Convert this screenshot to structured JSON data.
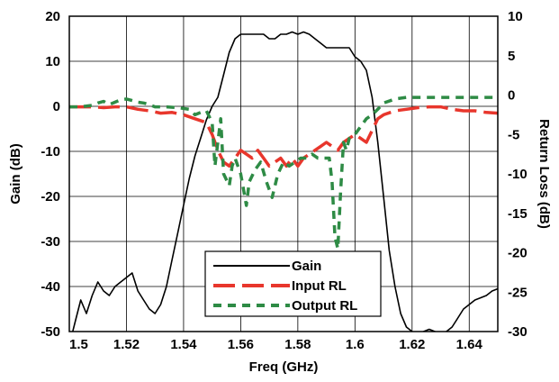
{
  "chart_data": {
    "type": "line",
    "xlabel": "Freq (GHz)",
    "ylabel": "Gain (dB)",
    "y2label": "Return Loss (dB)",
    "xlim": [
      1.5,
      1.65
    ],
    "ylim": [
      -50,
      20
    ],
    "y2lim": [
      -30,
      10
    ],
    "xticks": [
      "1.5",
      "1.52",
      "1.54",
      "1.56",
      "1.58",
      "1.6",
      "1.62",
      "1.64"
    ],
    "yticks": [
      "20",
      "10",
      "0",
      "-10",
      "-20",
      "-30",
      "-40",
      "-50"
    ],
    "y2ticks": [
      "10",
      "5",
      "0",
      "-5",
      "-10",
      "-15",
      "-20",
      "-25",
      "-30"
    ],
    "grid": true,
    "legend_position": "bottom-center",
    "series": [
      {
        "name": "Gain",
        "axis": "left",
        "color": "#000000",
        "style": "solid",
        "points": [
          [
            1.5,
            -53
          ],
          [
            1.502,
            -48
          ],
          [
            1.504,
            -43
          ],
          [
            1.506,
            -46
          ],
          [
            1.508,
            -42
          ],
          [
            1.51,
            -39
          ],
          [
            1.512,
            -41
          ],
          [
            1.514,
            -42
          ],
          [
            1.516,
            -40
          ],
          [
            1.518,
            -39
          ],
          [
            1.52,
            -38
          ],
          [
            1.522,
            -37
          ],
          [
            1.524,
            -41
          ],
          [
            1.526,
            -43
          ],
          [
            1.528,
            -45
          ],
          [
            1.53,
            -46
          ],
          [
            1.532,
            -44
          ],
          [
            1.534,
            -40
          ],
          [
            1.536,
            -34
          ],
          [
            1.538,
            -28
          ],
          [
            1.54,
            -22
          ],
          [
            1.542,
            -16
          ],
          [
            1.544,
            -11
          ],
          [
            1.546,
            -7
          ],
          [
            1.548,
            -3
          ],
          [
            1.55,
            0
          ],
          [
            1.552,
            2
          ],
          [
            1.554,
            7
          ],
          [
            1.556,
            12
          ],
          [
            1.558,
            15
          ],
          [
            1.56,
            16
          ],
          [
            1.562,
            16
          ],
          [
            1.564,
            16
          ],
          [
            1.566,
            16
          ],
          [
            1.568,
            16
          ],
          [
            1.57,
            15
          ],
          [
            1.572,
            15
          ],
          [
            1.574,
            16
          ],
          [
            1.576,
            16
          ],
          [
            1.578,
            16.5
          ],
          [
            1.58,
            16
          ],
          [
            1.582,
            16.5
          ],
          [
            1.584,
            16
          ],
          [
            1.586,
            15
          ],
          [
            1.588,
            14
          ],
          [
            1.59,
            13
          ],
          [
            1.592,
            13
          ],
          [
            1.594,
            13
          ],
          [
            1.596,
            13
          ],
          [
            1.598,
            13
          ],
          [
            1.6,
            11
          ],
          [
            1.602,
            10
          ],
          [
            1.604,
            8
          ],
          [
            1.606,
            2
          ],
          [
            1.608,
            -8
          ],
          [
            1.61,
            -20
          ],
          [
            1.612,
            -32
          ],
          [
            1.614,
            -40
          ],
          [
            1.616,
            -46
          ],
          [
            1.618,
            -49
          ],
          [
            1.62,
            -50
          ],
          [
            1.622,
            -50.5
          ],
          [
            1.624,
            -50
          ],
          [
            1.626,
            -49.5
          ],
          [
            1.628,
            -50
          ],
          [
            1.63,
            -50.5
          ],
          [
            1.632,
            -50
          ],
          [
            1.634,
            -49
          ],
          [
            1.636,
            -47
          ],
          [
            1.638,
            -45
          ],
          [
            1.64,
            -44
          ],
          [
            1.642,
            -43
          ],
          [
            1.644,
            -42.5
          ],
          [
            1.646,
            -42
          ],
          [
            1.648,
            -41
          ],
          [
            1.65,
            -40.5
          ]
        ]
      },
      {
        "name": "Input RL",
        "axis": "right",
        "color": "#e8362c",
        "style": "long-dash",
        "points": [
          [
            1.5,
            -1.5
          ],
          [
            1.504,
            -1.5
          ],
          [
            1.508,
            -1.5
          ],
          [
            1.512,
            -1.6
          ],
          [
            1.516,
            -1.5
          ],
          [
            1.52,
            -1.5
          ],
          [
            1.524,
            -1.8
          ],
          [
            1.528,
            -2
          ],
          [
            1.532,
            -2.3
          ],
          [
            1.536,
            -2.2
          ],
          [
            1.54,
            -2.5
          ],
          [
            1.544,
            -3
          ],
          [
            1.548,
            -3.5
          ],
          [
            1.55,
            -5
          ],
          [
            1.552,
            -7
          ],
          [
            1.554,
            -8.5
          ],
          [
            1.556,
            -9
          ],
          [
            1.558,
            -8
          ],
          [
            1.56,
            -7
          ],
          [
            1.562,
            -7.5
          ],
          [
            1.564,
            -8
          ],
          [
            1.566,
            -7
          ],
          [
            1.568,
            -8
          ],
          [
            1.57,
            -9
          ],
          [
            1.572,
            -8.5
          ],
          [
            1.574,
            -8
          ],
          [
            1.576,
            -9
          ],
          [
            1.578,
            -8
          ],
          [
            1.58,
            -9
          ],
          [
            1.582,
            -8
          ],
          [
            1.584,
            -7.5
          ],
          [
            1.586,
            -7
          ],
          [
            1.588,
            -6.5
          ],
          [
            1.59,
            -6
          ],
          [
            1.592,
            -6.5
          ],
          [
            1.594,
            -7
          ],
          [
            1.596,
            -6
          ],
          [
            1.598,
            -5.5
          ],
          [
            1.6,
            -5
          ],
          [
            1.602,
            -5.5
          ],
          [
            1.604,
            -6
          ],
          [
            1.606,
            -4.5
          ],
          [
            1.608,
            -3
          ],
          [
            1.61,
            -2.5
          ],
          [
            1.614,
            -2
          ],
          [
            1.618,
            -1.8
          ],
          [
            1.622,
            -1.6
          ],
          [
            1.626,
            -1.5
          ],
          [
            1.63,
            -1.5
          ],
          [
            1.634,
            -1.8
          ],
          [
            1.638,
            -2
          ],
          [
            1.642,
            -2
          ],
          [
            1.646,
            -2.2
          ],
          [
            1.65,
            -2.3
          ]
        ]
      },
      {
        "name": "Output RL",
        "axis": "right",
        "color": "#2e8b45",
        "style": "dash",
        "points": [
          [
            1.5,
            -1.5
          ],
          [
            1.504,
            -1.5
          ],
          [
            1.508,
            -1.3
          ],
          [
            1.51,
            -1
          ],
          [
            1.512,
            -0.8
          ],
          [
            1.514,
            -1.2
          ],
          [
            1.516,
            -0.9
          ],
          [
            1.518,
            -0.6
          ],
          [
            1.52,
            -0.5
          ],
          [
            1.522,
            -0.7
          ],
          [
            1.524,
            -0.9
          ],
          [
            1.526,
            -1
          ],
          [
            1.528,
            -1.2
          ],
          [
            1.53,
            -1.5
          ],
          [
            1.534,
            -1.5
          ],
          [
            1.538,
            -1.6
          ],
          [
            1.542,
            -1.8
          ],
          [
            1.544,
            -2.5
          ],
          [
            1.546,
            -2.2
          ],
          [
            1.548,
            -2
          ],
          [
            1.55,
            -3.5
          ],
          [
            1.551,
            -9
          ],
          [
            1.552,
            -6
          ],
          [
            1.553,
            -3
          ],
          [
            1.554,
            -10
          ],
          [
            1.556,
            -11.5
          ],
          [
            1.557,
            -9
          ],
          [
            1.558,
            -8
          ],
          [
            1.56,
            -10
          ],
          [
            1.562,
            -14
          ],
          [
            1.563,
            -11
          ],
          [
            1.565,
            -9.5
          ],
          [
            1.567,
            -8.5
          ],
          [
            1.569,
            -11
          ],
          [
            1.571,
            -13
          ],
          [
            1.573,
            -10
          ],
          [
            1.575,
            -8.5
          ],
          [
            1.577,
            -9
          ],
          [
            1.579,
            -8.5
          ],
          [
            1.581,
            -8
          ],
          [
            1.583,
            -8
          ],
          [
            1.585,
            -7.5
          ],
          [
            1.587,
            -8
          ],
          [
            1.589,
            -8
          ],
          [
            1.591,
            -8
          ],
          [
            1.592,
            -11
          ],
          [
            1.593,
            -18
          ],
          [
            1.594,
            -19.5
          ],
          [
            1.595,
            -12
          ],
          [
            1.596,
            -6
          ],
          [
            1.597,
            -7
          ],
          [
            1.598,
            -5.5
          ],
          [
            1.6,
            -5
          ],
          [
            1.602,
            -4
          ],
          [
            1.604,
            -3
          ],
          [
            1.606,
            -2.5
          ],
          [
            1.608,
            -1.8
          ],
          [
            1.61,
            -1
          ],
          [
            1.614,
            -0.5
          ],
          [
            1.618,
            -0.3
          ],
          [
            1.622,
            -0.3
          ],
          [
            1.626,
            -0.3
          ],
          [
            1.63,
            -0.3
          ],
          [
            1.634,
            -0.3
          ],
          [
            1.638,
            -0.3
          ],
          [
            1.642,
            -0.3
          ],
          [
            1.646,
            -0.3
          ],
          [
            1.65,
            -0.3
          ]
        ]
      }
    ]
  }
}
